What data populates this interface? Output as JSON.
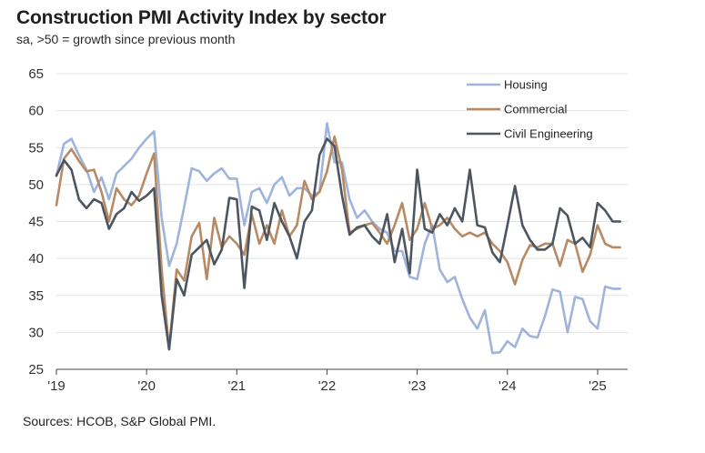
{
  "title": "Construction PMI Activity Index by sector",
  "subtitle": "sa, >50 = growth since previous month",
  "source": "Sources: HCOB, S&P Global PMI.",
  "chart_data": {
    "type": "line",
    "title": "Construction PMI Activity Index by sector",
    "xlabel": "",
    "ylabel": "",
    "ylim": [
      25,
      65
    ],
    "yticks": [
      25,
      30,
      35,
      40,
      45,
      50,
      55,
      60,
      65
    ],
    "xlim": [
      0,
      76
    ],
    "xticks": [
      {
        "label": "'19",
        "index": 0
      },
      {
        "label": "'20",
        "index": 12
      },
      {
        "label": "'21",
        "index": 24
      },
      {
        "label": "'22",
        "index": 36
      },
      {
        "label": "'23",
        "index": 48
      },
      {
        "label": "'24",
        "index": 60
      },
      {
        "label": "'25",
        "index": 72
      }
    ],
    "grid": "horizontal",
    "legend": "top-right",
    "x_start": "Jan 2019",
    "x_frequency": "monthly",
    "series": [
      {
        "name": "Housing",
        "color": "#9fb4dc",
        "values": [
          51.2,
          55.5,
          56.2,
          54.0,
          52.0,
          49.0,
          51.0,
          48.0,
          51.5,
          52.5,
          53.5,
          55.0,
          56.2,
          57.2,
          45.5,
          39.0,
          42.0,
          47.0,
          52.2,
          51.8,
          50.5,
          51.5,
          52.2,
          50.8,
          50.8,
          44.5,
          49.0,
          49.5,
          47.5,
          50.0,
          51.0,
          48.5,
          49.5,
          49.5,
          48.5,
          49.0,
          58.3,
          53.0,
          53.0,
          48.0,
          45.5,
          46.5,
          45.0,
          44.0,
          43.5,
          41.0,
          41.0,
          37.5,
          37.2,
          42.0,
          44.5,
          38.5,
          36.8,
          37.5,
          34.5,
          32.0,
          30.5,
          33.0,
          27.2,
          27.3,
          28.8,
          28.0,
          30.5,
          29.5,
          29.3,
          32.2,
          35.8,
          35.5,
          30.0,
          34.8,
          34.5,
          31.5,
          30.5,
          36.2,
          35.9,
          35.9
        ]
      },
      {
        "name": "Commercial",
        "color": "#b88a63",
        "values": [
          47.2,
          53.5,
          54.8,
          53.2,
          51.8,
          52.0,
          49.0,
          45.0,
          49.5,
          48.0,
          47.2,
          48.5,
          51.5,
          54.2,
          38.5,
          27.8,
          38.5,
          37.0,
          43.0,
          44.8,
          37.2,
          45.5,
          41.5,
          43.0,
          42.0,
          40.5,
          46.0,
          42.0,
          44.5,
          42.0,
          46.5,
          43.0,
          44.5,
          50.5,
          48.0,
          49.0,
          51.8,
          56.5,
          52.0,
          43.5,
          44.0,
          44.5,
          44.8,
          43.5,
          42.0,
          44.5,
          47.5,
          42.5,
          44.0,
          47.5,
          44.0,
          44.5,
          45.5,
          44.0,
          43.0,
          43.5,
          43.0,
          43.5,
          42.0,
          41.0,
          39.5,
          36.5,
          39.8,
          41.8,
          41.5,
          42.0,
          42.0,
          39.0,
          42.5,
          42.0,
          38.2,
          40.5,
          44.5,
          42.0,
          41.5,
          41.5
        ]
      },
      {
        "name": "Civil Engineering",
        "color": "#4c5560",
        "values": [
          51.2,
          53.3,
          52.0,
          48.0,
          46.8,
          48.0,
          47.5,
          44.0,
          46.0,
          46.8,
          49.0,
          47.8,
          48.5,
          49.5,
          35.0,
          27.7,
          37.2,
          35.0,
          40.5,
          41.5,
          42.5,
          39.2,
          41.2,
          48.2,
          48.0,
          36.0,
          47.0,
          46.5,
          42.5,
          47.5,
          45.0,
          43.0,
          40.0,
          45.0,
          46.5,
          54.0,
          56.2,
          55.2,
          48.5,
          43.2,
          44.2,
          44.5,
          43.0,
          42.0,
          46.0,
          39.5,
          44.0,
          38.0,
          52.0,
          44.0,
          43.5,
          46.0,
          44.5,
          46.8,
          45.0,
          52.0,
          44.5,
          44.2,
          40.8,
          39.5,
          44.5,
          49.8,
          44.5,
          42.5,
          41.2,
          41.2,
          42.0,
          46.8,
          45.8,
          42.0,
          42.8,
          41.5,
          47.5,
          46.5,
          45.0,
          45.0
        ]
      }
    ]
  }
}
